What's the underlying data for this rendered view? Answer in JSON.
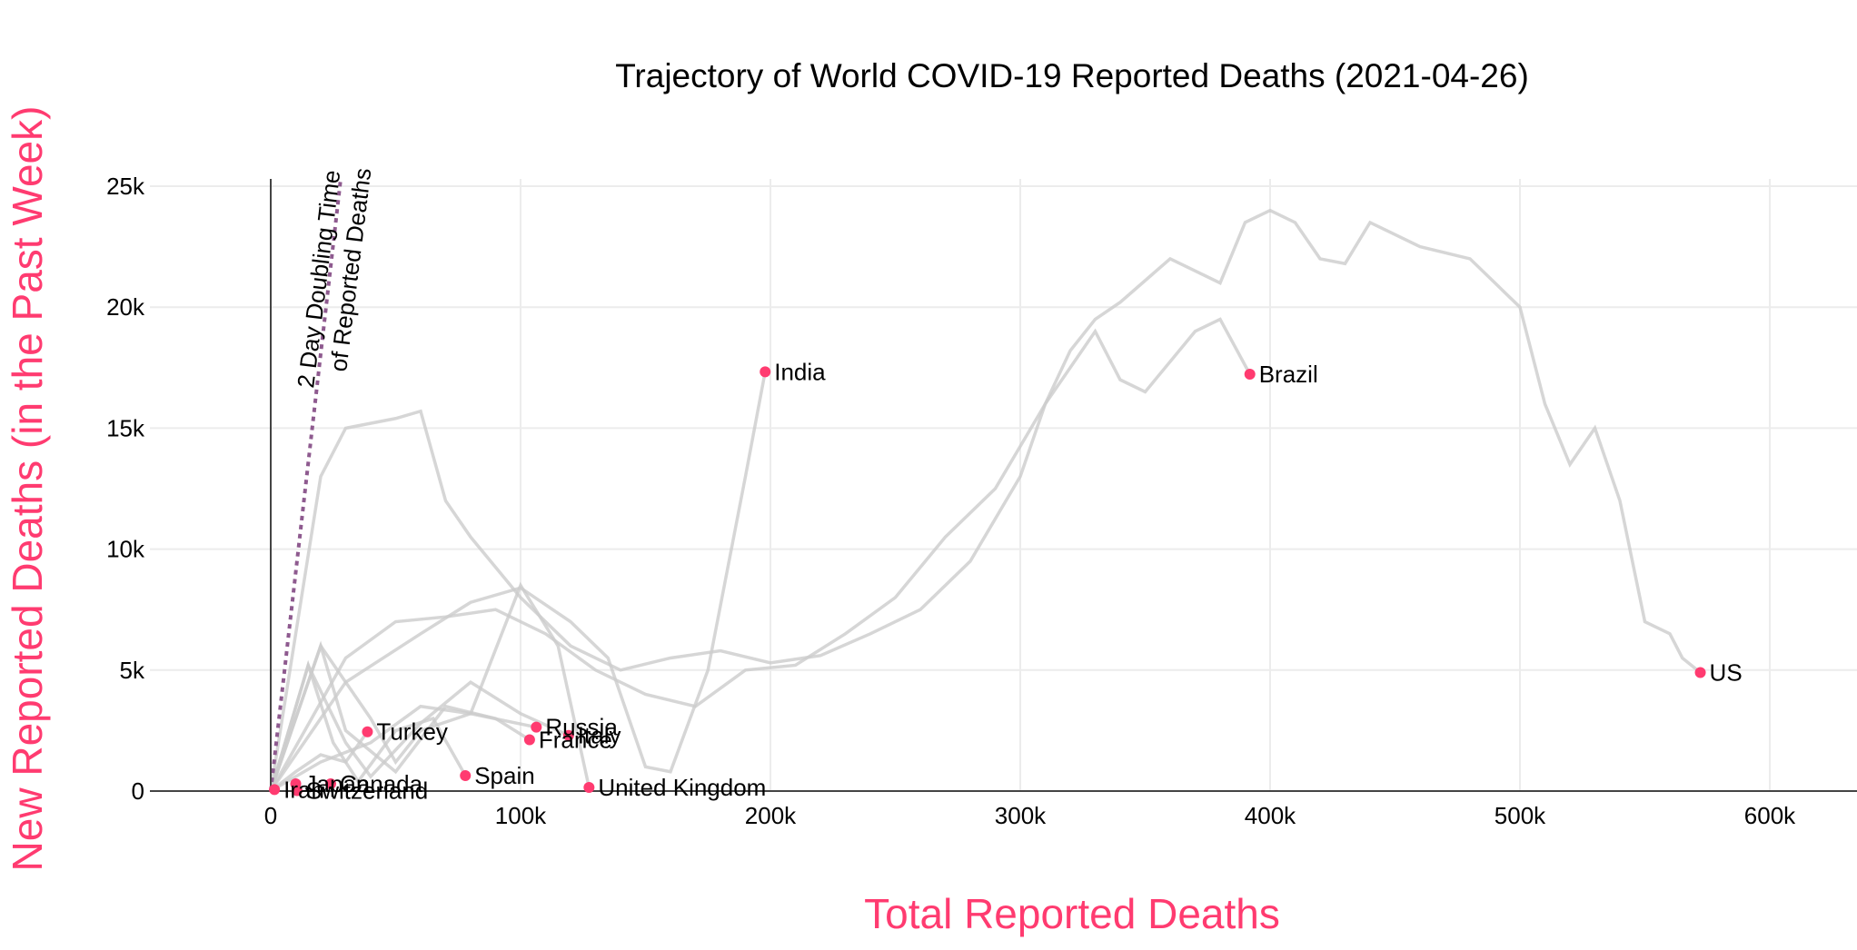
{
  "chart_data": {
    "type": "line",
    "title": "Trajectory of World COVID-19 Reported Deaths (2021-04-26)",
    "xlabel": "Total Reported Deaths",
    "ylabel": "New Reported Deaths (in the Past Week)",
    "xlim": [
      -48000,
      632000
    ],
    "ylim": [
      0,
      25300
    ],
    "x_ticks": [
      {
        "v": 0,
        "label": "0"
      },
      {
        "v": 100000,
        "label": "100k"
      },
      {
        "v": 200000,
        "label": "200k"
      },
      {
        "v": 300000,
        "label": "300k"
      },
      {
        "v": 400000,
        "label": "400k"
      },
      {
        "v": 500000,
        "label": "500k"
      },
      {
        "v": 600000,
        "label": "600k"
      }
    ],
    "y_ticks": [
      {
        "v": 0,
        "label": "0"
      },
      {
        "v": 5000,
        "label": "5k"
      },
      {
        "v": 10000,
        "label": "10k"
      },
      {
        "v": 15000,
        "label": "15k"
      },
      {
        "v": 20000,
        "label": "20k"
      },
      {
        "v": 25000,
        "label": "25k"
      }
    ],
    "grid": true,
    "colors": {
      "highlight": "#ff3b70",
      "trace": "#cccccc",
      "reference": "#8e5a8f"
    },
    "reference_line": {
      "label_line1": "2 Day Doubling Time",
      "label_line2": "of Reported Deaths",
      "points": [
        [
          0,
          0
        ],
        [
          28000,
          25300
        ]
      ]
    },
    "points": [
      {
        "name": "US",
        "x": 572200,
        "y": 4900
      },
      {
        "name": "Brazil",
        "x": 391900,
        "y": 17230
      },
      {
        "name": "India",
        "x": 197900,
        "y": 17330
      },
      {
        "name": "United Kingdom",
        "x": 127400,
        "y": 150
      },
      {
        "name": "Italy",
        "x": 119200,
        "y": 2300
      },
      {
        "name": "Russia",
        "x": 106300,
        "y": 2640
      },
      {
        "name": "France",
        "x": 103600,
        "y": 2120
      },
      {
        "name": "Spain",
        "x": 77900,
        "y": 640
      },
      {
        "name": "Turkey",
        "x": 38700,
        "y": 2450
      },
      {
        "name": "Canada",
        "x": 24000,
        "y": 300
      },
      {
        "name": "Japan",
        "x": 10000,
        "y": 300
      },
      {
        "name": "Switzerland",
        "x": 10500,
        "y": 20
      },
      {
        "name": "Iran",
        "x": 1500,
        "y": 60
      }
    ],
    "series": [
      {
        "name": "US",
        "pts": [
          [
            0,
            0
          ],
          [
            20000,
            13000
          ],
          [
            30000,
            15000
          ],
          [
            50000,
            15400
          ],
          [
            60000,
            15700
          ],
          [
            70000,
            12000
          ],
          [
            80000,
            10500
          ],
          [
            100000,
            8000
          ],
          [
            120000,
            6000
          ],
          [
            140000,
            5000
          ],
          [
            160000,
            5500
          ],
          [
            180000,
            5800
          ],
          [
            200000,
            5300
          ],
          [
            220000,
            5600
          ],
          [
            240000,
            6500
          ],
          [
            260000,
            7500
          ],
          [
            280000,
            9500
          ],
          [
            300000,
            13000
          ],
          [
            310000,
            16000
          ],
          [
            320000,
            18200
          ],
          [
            330000,
            19500
          ],
          [
            340000,
            20200
          ],
          [
            360000,
            22000
          ],
          [
            380000,
            21000
          ],
          [
            390000,
            23500
          ],
          [
            400000,
            24000
          ],
          [
            410000,
            23500
          ],
          [
            420000,
            22000
          ],
          [
            430000,
            21800
          ],
          [
            440000,
            23500
          ],
          [
            460000,
            22500
          ],
          [
            480000,
            22000
          ],
          [
            500000,
            20000
          ],
          [
            510000,
            16000
          ],
          [
            520000,
            13500
          ],
          [
            530000,
            15000
          ],
          [
            540000,
            12000
          ],
          [
            550000,
            7000
          ],
          [
            560000,
            6500
          ],
          [
            565000,
            5500
          ],
          [
            572200,
            4900
          ]
        ]
      },
      {
        "name": "Brazil",
        "pts": [
          [
            0,
            0
          ],
          [
            30000,
            5500
          ],
          [
            50000,
            7000
          ],
          [
            70000,
            7200
          ],
          [
            90000,
            7500
          ],
          [
            110000,
            6500
          ],
          [
            130000,
            5000
          ],
          [
            150000,
            4000
          ],
          [
            170000,
            3500
          ],
          [
            190000,
            5000
          ],
          [
            210000,
            5200
          ],
          [
            230000,
            6500
          ],
          [
            250000,
            8000
          ],
          [
            270000,
            10500
          ],
          [
            290000,
            12500
          ],
          [
            310000,
            16000
          ],
          [
            330000,
            19000
          ],
          [
            340000,
            17000
          ],
          [
            350000,
            16500
          ],
          [
            370000,
            19000
          ],
          [
            380000,
            19500
          ],
          [
            391900,
            17230
          ]
        ]
      },
      {
        "name": "India",
        "pts": [
          [
            0,
            0
          ],
          [
            30000,
            4500
          ],
          [
            60000,
            6500
          ],
          [
            80000,
            7800
          ],
          [
            100000,
            8400
          ],
          [
            120000,
            7000
          ],
          [
            135000,
            5500
          ],
          [
            150000,
            1000
          ],
          [
            160000,
            800
          ],
          [
            175000,
            5000
          ],
          [
            190000,
            13000
          ],
          [
            197900,
            17330
          ]
        ]
      },
      {
        "name": "UK",
        "pts": [
          [
            0,
            0
          ],
          [
            20000,
            6000
          ],
          [
            40000,
            3000
          ],
          [
            50000,
            1200
          ],
          [
            60000,
            2500
          ],
          [
            80000,
            3200
          ],
          [
            100000,
            8500
          ],
          [
            115000,
            6000
          ],
          [
            127400,
            150
          ]
        ]
      },
      {
        "name": "Italy",
        "pts": [
          [
            0,
            0
          ],
          [
            15000,
            5200
          ],
          [
            30000,
            2000
          ],
          [
            40000,
            600
          ],
          [
            60000,
            2800
          ],
          [
            80000,
            4500
          ],
          [
            100000,
            3200
          ],
          [
            119200,
            2300
          ]
        ]
      },
      {
        "name": "France",
        "pts": [
          [
            0,
            0
          ],
          [
            20000,
            6000
          ],
          [
            30000,
            2500
          ],
          [
            50000,
            800
          ],
          [
            70000,
            3500
          ],
          [
            90000,
            3000
          ],
          [
            103600,
            2120
          ]
        ]
      },
      {
        "name": "Russia",
        "pts": [
          [
            0,
            0
          ],
          [
            20000,
            1200
          ],
          [
            40000,
            2000
          ],
          [
            60000,
            3500
          ],
          [
            80000,
            3200
          ],
          [
            106300,
            2640
          ]
        ]
      },
      {
        "name": "Spain",
        "pts": [
          [
            0,
            0
          ],
          [
            15000,
            5200
          ],
          [
            25000,
            2000
          ],
          [
            35000,
            400
          ],
          [
            50000,
            2500
          ],
          [
            65000,
            3000
          ],
          [
            77900,
            640
          ]
        ]
      },
      {
        "name": "Turkey",
        "pts": [
          [
            0,
            0
          ],
          [
            10000,
            800
          ],
          [
            20000,
            1500
          ],
          [
            30000,
            1200
          ],
          [
            38700,
            2450
          ]
        ]
      }
    ]
  }
}
